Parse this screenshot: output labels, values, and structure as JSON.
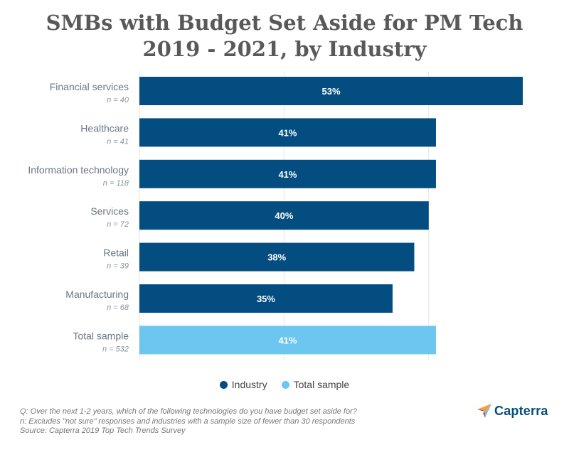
{
  "title": {
    "line1": "SMBs with Budget Set Aside for PM Tech",
    "line2": "2019 - 2021, by Industry"
  },
  "colors": {
    "industry": "#034d80",
    "total": "#6cc6ef",
    "label": "#6b7683",
    "grid": "#e5e5e5"
  },
  "chart_data": {
    "type": "bar",
    "orientation": "horizontal",
    "categories": [
      "Financial services",
      "Healthcare",
      "Information technology",
      "Services",
      "Retail",
      "Manufacturing",
      "Total sample"
    ],
    "sample_sizes": [
      "n = 40",
      "n = 41",
      "n = 118",
      "n = 72",
      "n = 39",
      "n = 68",
      "n = 532"
    ],
    "values": [
      53,
      41,
      41,
      40,
      38,
      35,
      41
    ],
    "value_labels": [
      "53%",
      "41%",
      "41%",
      "40%",
      "38%",
      "35%",
      "41%"
    ],
    "series_group": [
      "Industry",
      "Industry",
      "Industry",
      "Industry",
      "Industry",
      "Industry",
      "Total sample"
    ],
    "xlim": [
      0,
      53
    ],
    "grid": true,
    "legend_position": "bottom"
  },
  "legend": [
    {
      "label": "Industry",
      "color": "#034d80"
    },
    {
      "label": "Total sample",
      "color": "#6cc6ef"
    }
  ],
  "footnotes": [
    "Q: Over the next 1-2 years, which of the following technologies do you have budget set aside for?",
    "n: Excludes \"not sure\" responses and industries with a sample size of fewer than 30 respondents",
    "Source: Capterra 2019 Top Tech Trends Survey"
  ],
  "logo": {
    "text": "Capterra"
  }
}
